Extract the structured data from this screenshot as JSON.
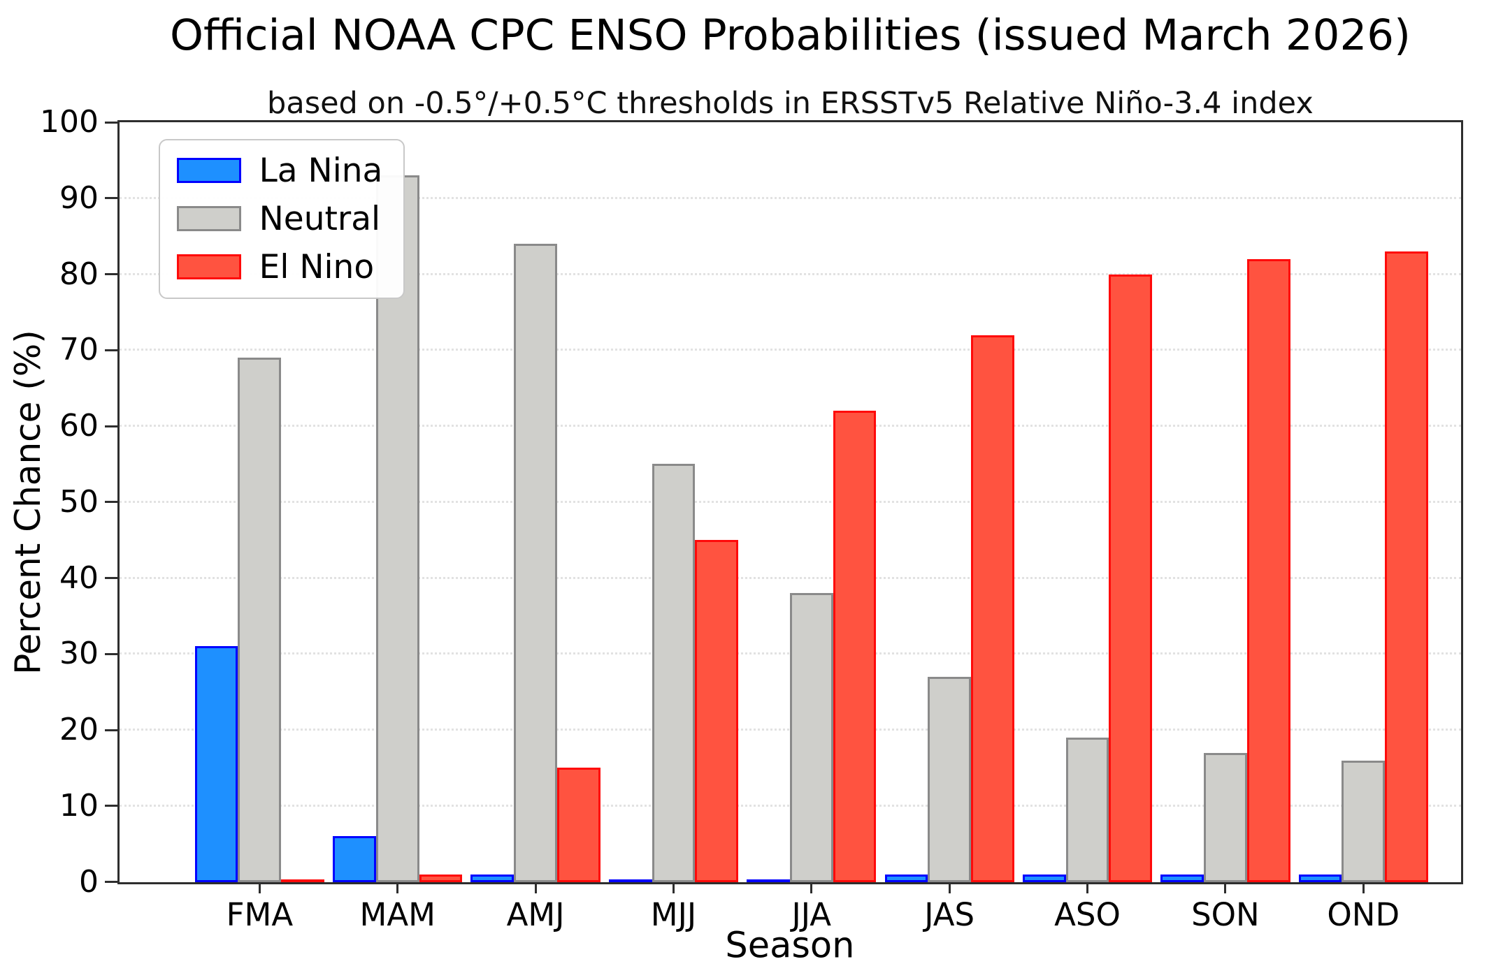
{
  "chart_data": {
    "type": "bar",
    "title": "Official NOAA CPC ENSO Probabilities (issued March 2026)",
    "subtitle": "based on -0.5°/+0.5°C thresholds in ERSSTv5 Relative Niño-3.4 index",
    "xlabel": "Season",
    "ylabel": "Percent Chance (%)",
    "ylim": [
      0,
      100
    ],
    "yticks": [
      0,
      10,
      20,
      30,
      40,
      50,
      60,
      70,
      80,
      90,
      100
    ],
    "ytick_labels": [
      "0",
      "10",
      "20",
      "30",
      "40",
      "50",
      "60",
      "70",
      "80",
      "90",
      "100"
    ],
    "grid": "horizontal-dotted",
    "legend_position": "upper-left",
    "categories": [
      "FMA",
      "MAM",
      "AMJ",
      "MJJ",
      "JJA",
      "JAS",
      "ASO",
      "SON",
      "OND"
    ],
    "series": [
      {
        "name": "La Nina",
        "fill": "#1e90ff",
        "edge": "#0000ff",
        "values": [
          31,
          6,
          1,
          0,
          0,
          1,
          1,
          1,
          1
        ]
      },
      {
        "name": "Neutral",
        "fill": "#cfcfcb",
        "edge": "#8a8a8a",
        "values": [
          69,
          93,
          84,
          55,
          38,
          27,
          19,
          17,
          16
        ]
      },
      {
        "name": "El Nino",
        "fill": "#ff5340",
        "edge": "#ff0a0a",
        "values": [
          0,
          1,
          15,
          45,
          62,
          72,
          80,
          82,
          83
        ]
      }
    ]
  }
}
